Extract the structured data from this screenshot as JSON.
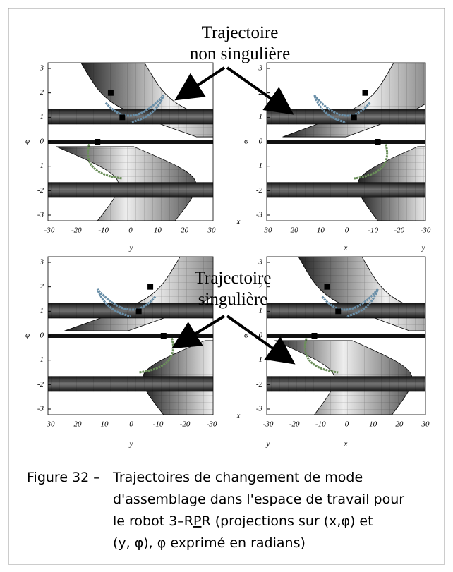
{
  "annotations": [
    {
      "lines": [
        "Trajectoire",
        "non singulière"
      ]
    },
    {
      "lines": [
        "Trajectoire",
        "singulière"
      ]
    }
  ],
  "panels": [
    {
      "y_label": "φ",
      "y_ticks": [
        "3",
        "2",
        "1",
        "0",
        "-1",
        "-2",
        "-3"
      ],
      "x_ticks": [
        "-30",
        "-20",
        "-10",
        "0",
        "10",
        "20",
        "30"
      ],
      "axis_labels": [
        "y",
        "x"
      ]
    },
    {
      "y_label": "φ",
      "y_ticks": [
        "3",
        "2",
        "1",
        "0",
        "-1",
        "-2",
        "-3"
      ],
      "x_ticks": [
        "30",
        "20",
        "10",
        "0",
        "-10",
        "-20",
        "-30"
      ],
      "axis_labels": [
        "x",
        "y",
        "x"
      ]
    },
    {
      "y_label": "φ",
      "y_ticks": [
        "3",
        "2",
        "1",
        "0",
        "-1",
        "-2",
        "-3"
      ],
      "x_ticks": [
        "30",
        "20",
        "10",
        "0",
        "-10",
        "-20",
        "-30"
      ],
      "axis_labels": [
        "y",
        "x"
      ]
    },
    {
      "y_label": "φ",
      "y_ticks": [
        "3",
        "2",
        "1",
        "0",
        "-1",
        "-2",
        "-3"
      ],
      "x_ticks": [
        "-30",
        "-20",
        "-10",
        "0",
        "10",
        "20",
        "30"
      ],
      "axis_labels": [
        "y",
        "x"
      ]
    }
  ],
  "caption": {
    "label": "Figure 32 –",
    "lines": [
      [
        "Trajectoires de changement de mode"
      ],
      [
        "d'assemblage dans l'espace de travail pour"
      ],
      [
        "le robot 3–R",
        "P",
        "R (projections sur (x,φ) et"
      ],
      [
        "(y, φ), φ exprimé en radians)"
      ]
    ]
  }
}
